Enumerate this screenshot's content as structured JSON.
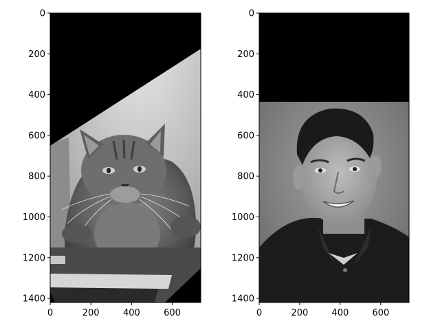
{
  "figure": {
    "background": "#ffffff",
    "axis_color": "#000000"
  },
  "chart_data": [
    {
      "type": "image",
      "xlim": [
        0,
        740
      ],
      "ylim": [
        1420,
        0
      ],
      "xticks": [
        0,
        200,
        400,
        600
      ],
      "yticks": [
        0,
        200,
        400,
        600,
        800,
        1000,
        1200,
        1400
      ],
      "colormap": "gray",
      "black_region_boundary": [
        [
          0,
          655
        ],
        [
          740,
          175
        ]
      ],
      "content_brightness_range": [
        0.05,
        0.95
      ]
    },
    {
      "type": "image",
      "xlim": [
        0,
        740
      ],
      "ylim": [
        1420,
        0
      ],
      "xticks": [
        0,
        200,
        400,
        600
      ],
      "yticks": [
        0,
        200,
        400,
        600,
        800,
        1000,
        1200,
        1400
      ],
      "colormap": "gray",
      "black_region_boundary": [
        [
          0,
          435
        ],
        [
          740,
          435
        ]
      ],
      "content_brightness_range": [
        0.05,
        0.75
      ]
    }
  ]
}
